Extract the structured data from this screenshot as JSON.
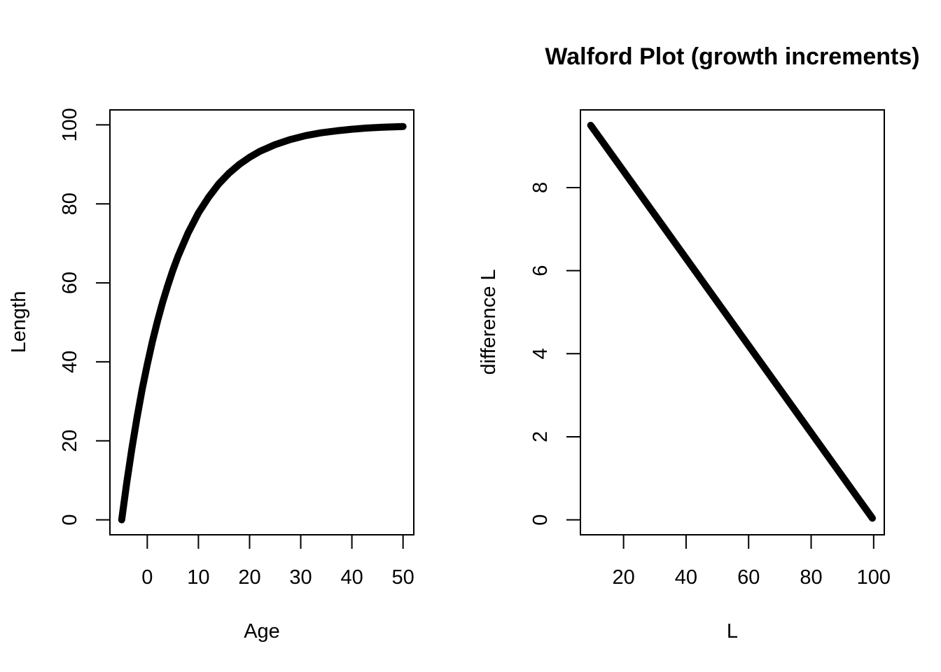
{
  "chart_data": [
    {
      "type": "line",
      "title": "",
      "xlabel": "Age",
      "ylabel": "Length",
      "xlim": [
        -7.3,
        52.1
      ],
      "ylim": [
        -3.8,
        103.8
      ],
      "xticks": [
        0,
        10,
        20,
        30,
        40,
        50
      ],
      "yticks": [
        0,
        20,
        40,
        60,
        80,
        100
      ],
      "grid": false,
      "series": [
        {
          "color": "#000000",
          "x": [
            -5,
            -4,
            -3,
            -2,
            -1,
            0,
            1,
            2,
            3,
            4,
            5,
            6,
            8,
            10,
            12,
            14,
            16,
            18,
            20,
            22,
            25,
            28,
            31,
            34,
            37,
            40,
            43,
            46,
            50
          ],
          "y": [
            0.0,
            9.5,
            18.1,
            25.9,
            33.0,
            39.3,
            45.1,
            50.3,
            55.1,
            59.3,
            63.2,
            66.7,
            72.7,
            77.7,
            81.7,
            85.1,
            87.8,
            90.0,
            91.8,
            93.3,
            95.0,
            96.3,
            97.3,
            98.0,
            98.5,
            98.9,
            99.2,
            99.4,
            99.6
          ]
        }
      ]
    },
    {
      "type": "line",
      "title": "Walford Plot (growth increments)",
      "xlabel": "L",
      "ylabel": "difference L",
      "xlim": [
        6.2,
        103.4
      ],
      "ylim": [
        -0.36,
        9.87
      ],
      "xticks": [
        20,
        40,
        60,
        80,
        100
      ],
      "yticks": [
        0,
        2,
        4,
        6,
        8
      ],
      "grid": false,
      "series": [
        {
          "color": "#000000",
          "x": [
            9.5,
            99.6
          ],
          "y": [
            9.5,
            0.04
          ]
        }
      ]
    }
  ]
}
